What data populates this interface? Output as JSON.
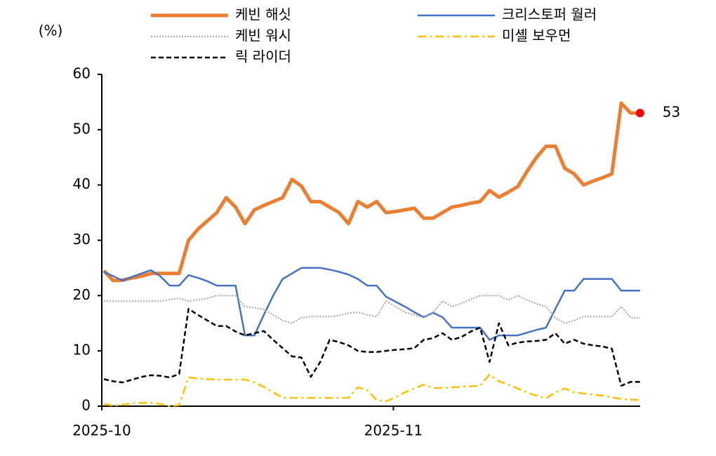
{
  "chart_data": {
    "type": "line",
    "y_label": "(%)",
    "categories": [
      "2025-10",
      null,
      null,
      null,
      null,
      null,
      null,
      null,
      null,
      null,
      null,
      null,
      null,
      null,
      null,
      null,
      null,
      null,
      null,
      null,
      null,
      null,
      null,
      null,
      null,
      null,
      null,
      null,
      null,
      null,
      null,
      "2025-11",
      null,
      null,
      null,
      null,
      null,
      null,
      null,
      null,
      null,
      null,
      null,
      null,
      null,
      null,
      null,
      null,
      null,
      null,
      null,
      null,
      null,
      null,
      null,
      null,
      null,
      null
    ],
    "series": [
      {
        "name": "케빈 해싯",
        "color": "#ed7d31",
        "width": 5,
        "style": "solid",
        "values": [
          24.5,
          22.7,
          22.8,
          23.2,
          23.5,
          24,
          24,
          24,
          24,
          30,
          32,
          33.5,
          35,
          37.7,
          36,
          33,
          35.5,
          36.3,
          37,
          37.7,
          41,
          39.8,
          37,
          37,
          36,
          35,
          33,
          37,
          36,
          37,
          35,
          35.2,
          35.5,
          35.8,
          34,
          34,
          35,
          36,
          36.3,
          36.7,
          37,
          39,
          37.8,
          38.7,
          39.7,
          42.5,
          45,
          47,
          47,
          43,
          42,
          40,
          40.7,
          41.3,
          42,
          54.8,
          53,
          53
        ]
      },
      {
        "name": "크리스토퍼 월러",
        "color": "#4472c4",
        "width": 2.5,
        "style": "solid",
        "values": [
          24.3,
          23.5,
          22.7,
          23.4,
          24,
          24.6,
          23.5,
          21.8,
          21.8,
          23.7,
          23.2,
          22.6,
          21.8,
          21.8,
          21.8,
          12.8,
          12.8,
          16.5,
          20,
          23,
          24,
          25,
          25,
          25,
          24.7,
          24.3,
          23.8,
          23,
          21.8,
          21.8,
          19.8,
          18.9,
          18,
          17,
          16.1,
          16.9,
          16.1,
          14.2,
          14.2,
          14.2,
          14.2,
          12,
          12.8,
          12.8,
          12.8,
          13.3,
          13.8,
          14.2,
          17.6,
          20.9,
          20.9,
          23,
          23,
          23,
          23,
          20.9,
          20.9,
          20.9
        ]
      },
      {
        "name": "케빈 워시",
        "color": "#a6a6a6",
        "width": 2,
        "style": "dotted",
        "values": [
          19,
          19,
          19,
          19,
          19,
          19,
          19,
          19.3,
          19.5,
          19,
          19.2,
          19.5,
          20,
          20,
          20,
          18,
          17.8,
          17.5,
          16.5,
          15.5,
          15,
          16,
          16.2,
          16.2,
          16.2,
          16.4,
          16.8,
          17,
          16.5,
          16.2,
          19,
          18,
          17,
          16.5,
          16,
          17,
          19,
          18,
          18.6,
          19.3,
          20,
          20,
          20,
          19.2,
          20,
          19.2,
          18.5,
          18,
          16,
          15,
          15.5,
          16.2,
          16.2,
          16.2,
          16.2,
          18,
          16,
          16
        ]
      },
      {
        "name": "미셸 보우먼",
        "color": "#ffc000",
        "width": 2.5,
        "style": "dashdot",
        "values": [
          0.4,
          0.1,
          0.3,
          0.5,
          0.6,
          0.6,
          0.4,
          0,
          0.2,
          5.2,
          5,
          4.9,
          4.8,
          4.8,
          4.8,
          4.8,
          4.3,
          3.5,
          2.5,
          1.5,
          1.5,
          1.5,
          1.5,
          1.5,
          1.5,
          1.5,
          1.5,
          3.4,
          2.9,
          1.1,
          0.9,
          1.6,
          2.5,
          3.2,
          3.9,
          3.3,
          3.3,
          3.4,
          3.5,
          3.6,
          3.7,
          5.7,
          4.5,
          3.9,
          3.2,
          2.5,
          1.9,
          1.4,
          2.5,
          3.2,
          2.5,
          2.3,
          2.1,
          1.9,
          1.6,
          1.3,
          1.2,
          1.1
        ]
      },
      {
        "name": "릭 라이더",
        "color": "#000000",
        "width": 2.5,
        "style": "dashed",
        "values": [
          4.9,
          4.5,
          4.3,
          4.8,
          5.3,
          5.6,
          5.5,
          5.2,
          5.8,
          17.6,
          16.5,
          15.5,
          14.5,
          14.5,
          13.5,
          12.8,
          13.2,
          13.6,
          12,
          10.5,
          9,
          8.8,
          5.3,
          8,
          12,
          11.6,
          11,
          10,
          9.8,
          9.8,
          10,
          10.2,
          10.3,
          10.5,
          12,
          12.3,
          13.2,
          12,
          12.5,
          13.5,
          14.2,
          8,
          15,
          11,
          11.5,
          11.7,
          11.8,
          12,
          13.2,
          11.3,
          12,
          11.3,
          11,
          10.8,
          10.4,
          3.7,
          4.4,
          4.4
        ]
      }
    ],
    "highlight_color": "#ff0000",
    "ylim": [
      0,
      60
    ],
    "yticks": [
      0,
      10,
      20,
      30,
      40,
      50,
      60
    ]
  }
}
